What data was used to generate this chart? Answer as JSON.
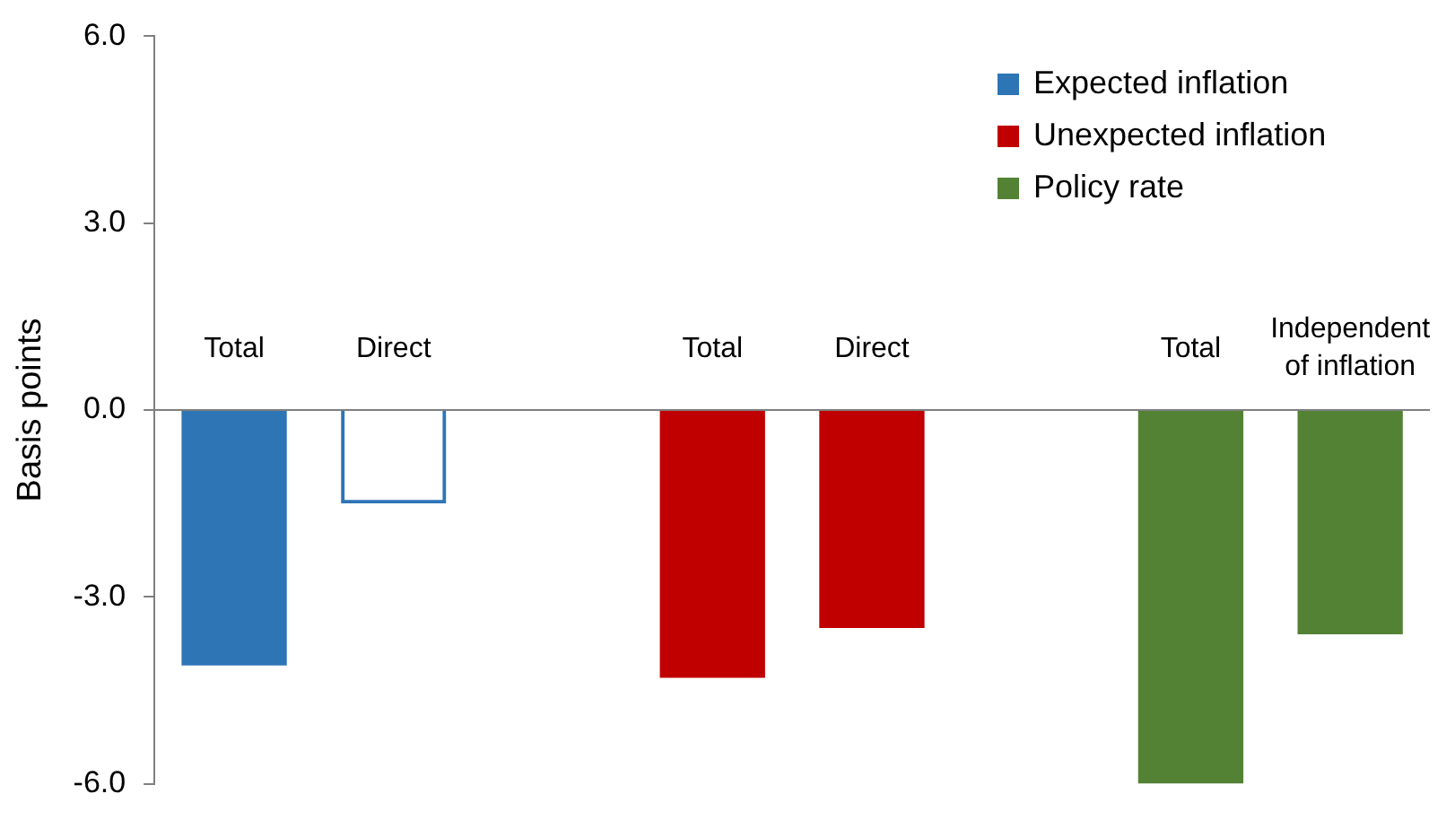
{
  "chart_data": {
    "type": "bar",
    "ylabel": "Basis points",
    "categories": [
      "Total",
      "Direct",
      null,
      "Total",
      "Direct",
      null,
      "Total",
      "Independent of inflation"
    ],
    "series": [
      {
        "name": "Expected inflation",
        "color": "#2e75b6",
        "colors": [
          null,
          "#2e75b6",
          null,
          null,
          null,
          null,
          null,
          null
        ],
        "values": [
          -4.1,
          -1.5,
          null,
          null,
          null,
          null,
          null,
          null
        ]
      },
      {
        "name": "Unexpected inflation",
        "color": "#c00000",
        "values": [
          null,
          null,
          null,
          -4.3,
          -3.5,
          null,
          null,
          null
        ]
      },
      {
        "name": "Policy rate",
        "color": "#548235",
        "values": [
          null,
          null,
          null,
          null,
          null,
          null,
          -6.0,
          -3.6
        ]
      }
    ],
    "ylim": [
      -6,
      6
    ],
    "yticks": [
      {
        "value": -6,
        "label": "-6.0"
      },
      {
        "value": -3,
        "label": "-3.0"
      },
      {
        "value": 0,
        "label": "0.0"
      },
      {
        "value": 3,
        "label": "3.0"
      },
      {
        "value": 6,
        "label": "6.0"
      }
    ],
    "grid": false,
    "legend": "top right"
  }
}
